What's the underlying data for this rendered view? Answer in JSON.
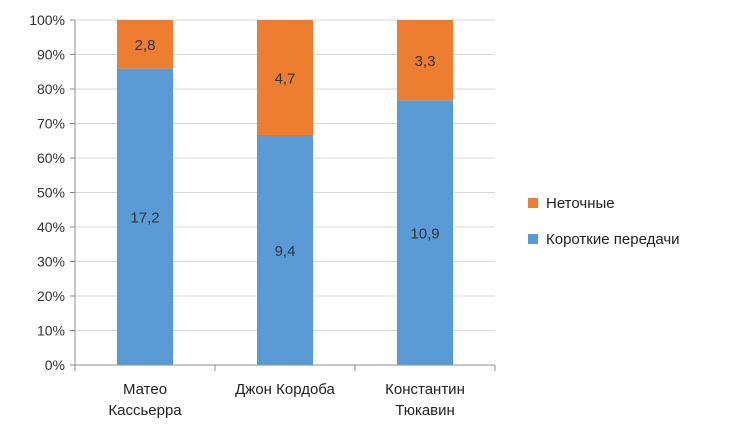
{
  "chart_data": {
    "type": "bar",
    "stacked": "percent",
    "categories": [
      [
        "Матео",
        "Кассьерра"
      ],
      [
        "Джон Кордоба"
      ],
      [
        "Константин",
        "Тюкавин"
      ]
    ],
    "series": [
      {
        "name": "Короткие передачи",
        "color": "#5b9bd5",
        "values": [
          17.2,
          9.4,
          10.9
        ],
        "labels": [
          "17,2",
          "9,4",
          "10,9"
        ]
      },
      {
        "name": "Неточные",
        "color": "#ed7d31",
        "values": [
          2.8,
          4.7,
          3.3
        ],
        "labels": [
          "2,8",
          "4,7",
          "3,3"
        ]
      }
    ],
    "y_ticks": [
      "0%",
      "10%",
      "20%",
      "30%",
      "40%",
      "50%",
      "60%",
      "70%",
      "80%",
      "90%",
      "100%"
    ],
    "ylim": [
      0,
      100
    ],
    "grid": true,
    "legend_position": "right",
    "legend": [
      {
        "label": "Неточные",
        "color": "#ed7d31"
      },
      {
        "label": "Короткие передачи",
        "color": "#5b9bd5"
      }
    ]
  }
}
